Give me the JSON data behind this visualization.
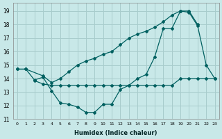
{
  "xlabel": "Humidex (Indice chaleur)",
  "xlim": [
    -0.5,
    23.5
  ],
  "ylim": [
    11.0,
    19.6
  ],
  "yticks": [
    11,
    12,
    13,
    14,
    15,
    16,
    17,
    18,
    19
  ],
  "xticks": [
    0,
    1,
    2,
    3,
    4,
    5,
    6,
    7,
    8,
    9,
    10,
    11,
    12,
    13,
    14,
    15,
    16,
    17,
    18,
    19,
    20,
    21,
    22,
    23
  ],
  "bg_color": "#c8e8e8",
  "grid_color": "#a8cccc",
  "line_color": "#006060",
  "lineA_x": [
    0,
    1,
    2,
    3,
    4,
    5,
    6,
    7,
    8,
    9,
    10,
    11,
    12,
    13,
    14,
    15,
    16,
    17,
    18,
    19,
    20,
    21,
    22,
    23
  ],
  "lineA_y": [
    14.7,
    14.7,
    13.9,
    14.1,
    13.1,
    12.2,
    12.1,
    11.9,
    11.5,
    11.5,
    12.1,
    12.1,
    13.2,
    13.5,
    14.0,
    14.3,
    15.6,
    17.7,
    17.7,
    19.0,
    18.9,
    17.9,
    15.0,
    14.0
  ],
  "lineB_x": [
    0,
    1,
    3,
    4,
    5,
    6,
    7,
    8,
    9,
    10,
    11,
    12,
    13,
    14,
    15,
    16,
    17,
    18,
    19,
    20,
    21
  ],
  "lineB_y": [
    14.7,
    14.7,
    14.2,
    13.7,
    14.0,
    14.5,
    15.0,
    15.3,
    15.5,
    15.8,
    16.0,
    16.5,
    17.0,
    17.3,
    17.5,
    17.8,
    18.2,
    18.7,
    19.0,
    19.0,
    18.0
  ],
  "lineC_x": [
    2,
    3,
    4,
    5,
    6,
    7,
    8,
    9,
    10,
    11,
    12,
    13,
    14,
    15,
    16,
    17,
    18,
    19,
    20,
    21,
    22,
    23
  ],
  "lineC_y": [
    13.85,
    13.6,
    13.5,
    13.5,
    13.5,
    13.5,
    13.5,
    13.5,
    13.5,
    13.5,
    13.5,
    13.5,
    13.5,
    13.5,
    13.5,
    13.5,
    13.5,
    14.0,
    14.0,
    14.0,
    14.0,
    14.0
  ]
}
